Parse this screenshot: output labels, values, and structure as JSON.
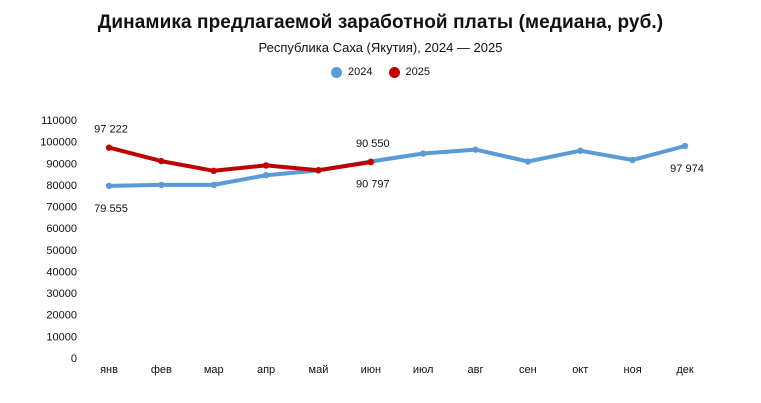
{
  "chart_data": {
    "type": "line",
    "title": "Динамика предлагаемой заработной платы (медиана, руб.)",
    "subtitle": "Республика Саха (Якутия), 2024 — 2025",
    "categories": [
      "янв",
      "фев",
      "мар",
      "апр",
      "май",
      "июн",
      "июл",
      "авг",
      "сен",
      "окт",
      "ноя",
      "дек"
    ],
    "ylim": [
      0,
      110000
    ],
    "yticks": [
      0,
      10000,
      20000,
      30000,
      40000,
      50000,
      60000,
      70000,
      80000,
      90000,
      100000,
      110000
    ],
    "ytick_labels": [
      "0",
      "10000",
      "20000",
      "30000",
      "40000",
      "50000",
      "60000",
      "70000",
      "80000",
      "90000",
      "100000",
      "110000"
    ],
    "grid": false,
    "legend_position": "top-center",
    "series": [
      {
        "name": "2024",
        "color": "#5b9bd5",
        "values": [
          79555,
          80000,
          80000,
          84500,
          86700,
          90797,
          94500,
          96300,
          90800,
          95800,
          91500,
          97974
        ]
      },
      {
        "name": "2025",
        "color": "#c00000",
        "values": [
          97222,
          91000,
          86500,
          89000,
          86800,
          90550,
          null,
          null,
          null,
          null,
          null,
          null
        ]
      }
    ],
    "annotations": [
      {
        "text": "97 222",
        "series": 1,
        "index": 0,
        "placement": "above"
      },
      {
        "text": "79 555",
        "series": 0,
        "index": 0,
        "placement": "below"
      },
      {
        "text": "90 550",
        "series": 1,
        "index": 5,
        "placement": "above"
      },
      {
        "text": "90 797",
        "series": 0,
        "index": 5,
        "placement": "below"
      },
      {
        "text": "97 974",
        "series": 0,
        "index": 11,
        "placement": "below"
      }
    ]
  }
}
